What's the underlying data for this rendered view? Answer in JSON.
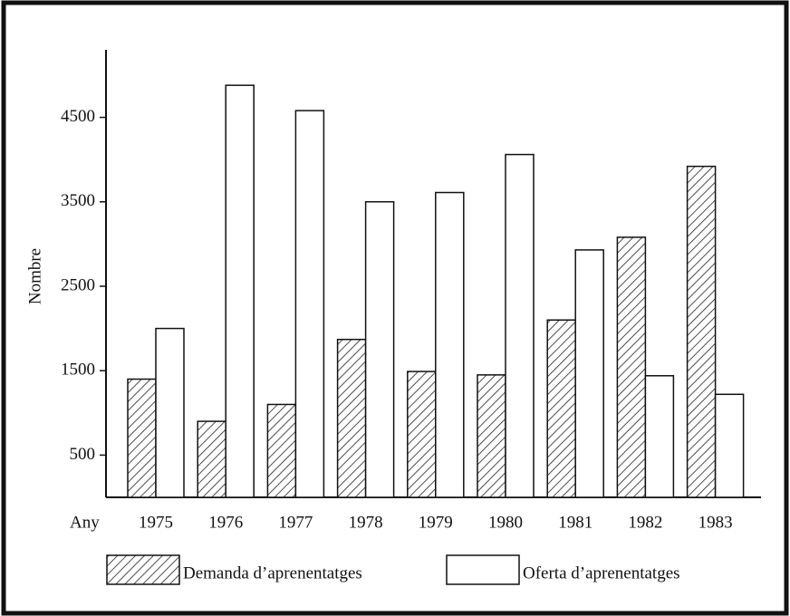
{
  "chart_data": {
    "type": "bar",
    "x_label": "Any",
    "y_label": "Nombre",
    "categories": [
      "1975",
      "1976",
      "1977",
      "1978",
      "1979",
      "1980",
      "1981",
      "1982",
      "1983"
    ],
    "series": [
      {
        "name": "Demanda d’aprenentatges",
        "color": "#000000",
        "pattern": "hatch",
        "values": [
          1400,
          900,
          1100,
          1870,
          1490,
          1450,
          2100,
          3080,
          3920
        ]
      },
      {
        "name": "Oferta d’aprenentatges",
        "color": "#ffffff",
        "pattern": "none",
        "values": [
          2000,
          4880,
          4580,
          3500,
          3610,
          4060,
          2930,
          1440,
          1220
        ]
      }
    ],
    "ylim": [
      0,
      5300
    ],
    "yticks": [
      500,
      1500,
      2500,
      3500,
      4500
    ],
    "grid": false,
    "legend": "bottom"
  }
}
